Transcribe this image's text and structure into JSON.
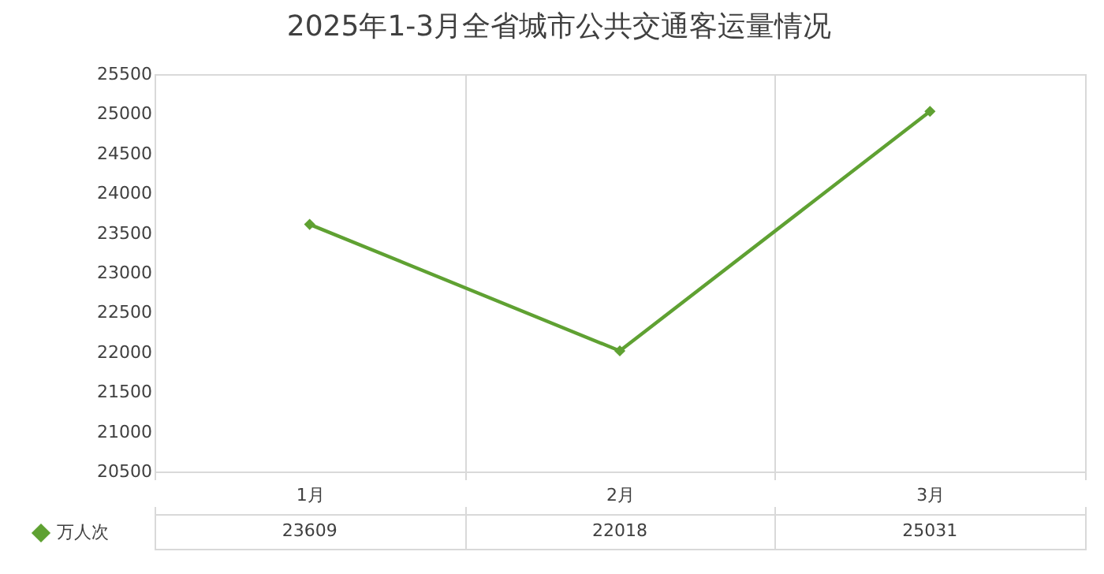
{
  "chart_data": {
    "type": "line",
    "title": "2025年1-3月全省城市公共交通客运量情况",
    "categories": [
      "1月",
      "2月",
      "3月"
    ],
    "series": [
      {
        "name": "万人次",
        "color": "#5fa132",
        "values": [
          23609,
          22018,
          25031
        ]
      }
    ],
    "ylim": [
      20500,
      25500
    ],
    "yticks": [
      20500,
      21000,
      21500,
      22000,
      22500,
      23000,
      23500,
      24000,
      24500,
      25000,
      25500
    ],
    "grid": "x",
    "marker": "diamond",
    "line_style": "solid",
    "data_labels": true,
    "legend": "bottom left"
  }
}
